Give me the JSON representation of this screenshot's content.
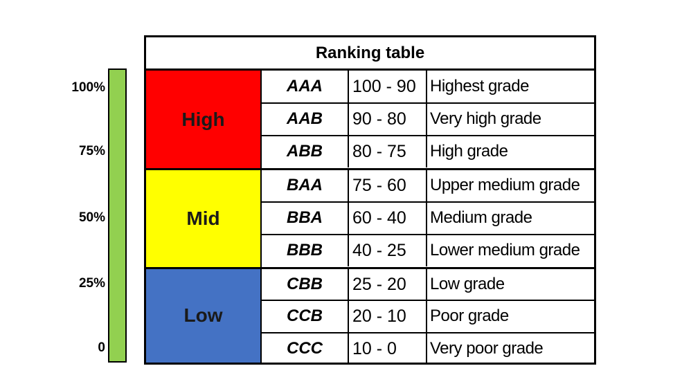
{
  "scale": {
    "labels": [
      "100%",
      "75%",
      "50%",
      "25%",
      "0"
    ],
    "bar_color": "#92d050"
  },
  "table": {
    "title": "Ranking table",
    "bands": [
      {
        "label": "High",
        "color": "#ff0000"
      },
      {
        "label": "Mid",
        "color": "#ffff00"
      },
      {
        "label": "Low",
        "color": "#4472c4"
      }
    ],
    "rows": [
      {
        "code": "AAA",
        "range": "100 - 90",
        "description": "Highest grade"
      },
      {
        "code": "AAB",
        "range": "90 - 80",
        "description": "Very high grade"
      },
      {
        "code": "ABB",
        "range": "80 - 75",
        "description": "High grade"
      },
      {
        "code": "BAA",
        "range": "75 - 60",
        "description": "Upper medium grade"
      },
      {
        "code": "BBA",
        "range": "60 - 40",
        "description": "Medium grade"
      },
      {
        "code": "BBB",
        "range": "40 - 25",
        "description": "Lower medium grade"
      },
      {
        "code": "CBB",
        "range": "25 - 20",
        "description": "Low grade"
      },
      {
        "code": "CCB",
        "range": "20 - 10",
        "description": "Poor grade"
      },
      {
        "code": "CCC",
        "range": "10 - 0",
        "description": "Very poor grade"
      }
    ]
  }
}
